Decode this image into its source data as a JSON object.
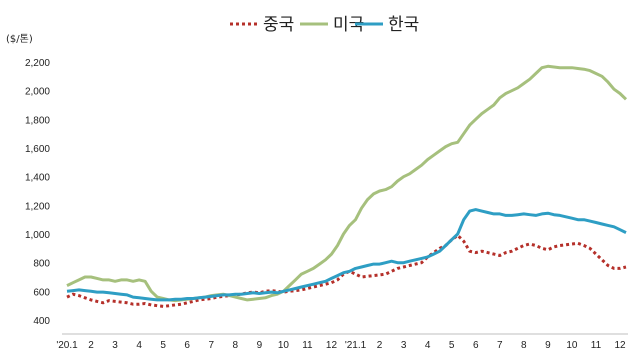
{
  "chart_data": {
    "type": "line",
    "unit_label": "($/톤)",
    "legend_position": "top-center",
    "grid": false,
    "ylim": [
      400,
      2200
    ],
    "yticks": [
      400,
      600,
      800,
      "1,000",
      "1,200",
      "1,400",
      "1,600",
      "1,800",
      "2,000",
      "2,200"
    ],
    "ytick_values": [
      400,
      600,
      800,
      1000,
      1200,
      1400,
      1600,
      1800,
      2000,
      2200
    ],
    "xticks": [
      "'20.1",
      "2",
      "3",
      "4",
      "5",
      "6",
      "7",
      "8",
      "9",
      "10",
      "11",
      "12",
      "'21.1",
      "2",
      "3",
      "4",
      "5",
      "6",
      "7",
      "8",
      "9",
      "10",
      "11",
      "12"
    ],
    "x_per_tick": 4,
    "x_start_tick": "'20.1",
    "series": [
      {
        "name": "중국",
        "color": "#b5302a",
        "style": "dotted",
        "values": [
          560,
          580,
          570,
          555,
          540,
          530,
          520,
          535,
          530,
          525,
          520,
          510,
          510,
          515,
          505,
          500,
          495,
          500,
          505,
          510,
          520,
          530,
          540,
          545,
          550,
          560,
          565,
          570,
          575,
          580,
          590,
          595,
          590,
          600,
          605,
          600,
          595,
          600,
          605,
          610,
          620,
          630,
          640,
          650,
          660,
          680,
          720,
          740,
          720,
          700,
          705,
          710,
          715,
          720,
          740,
          760,
          770,
          780,
          790,
          800,
          840,
          870,
          900,
          920,
          960,
          990,
          950,
          880,
          870,
          880,
          870,
          860,
          850,
          870,
          880,
          900,
          920,
          930,
          920,
          900,
          890,
          910,
          920,
          925,
          930,
          935,
          920,
          900,
          860,
          820,
          780,
          760,
          760,
          770
        ]
      },
      {
        "name": "미국",
        "color": "#a6c07d",
        "style": "solid",
        "values": [
          640,
          660,
          680,
          700,
          700,
          690,
          680,
          680,
          670,
          680,
          680,
          670,
          680,
          670,
          600,
          560,
          550,
          540,
          535,
          540,
          545,
          550,
          555,
          560,
          570,
          575,
          580,
          570,
          560,
          550,
          540,
          545,
          550,
          555,
          570,
          580,
          600,
          640,
          680,
          720,
          740,
          760,
          790,
          820,
          860,
          920,
          1000,
          1060,
          1100,
          1180,
          1240,
          1280,
          1300,
          1310,
          1330,
          1370,
          1400,
          1420,
          1450,
          1480,
          1520,
          1550,
          1580,
          1610,
          1630,
          1640,
          1700,
          1760,
          1800,
          1840,
          1870,
          1900,
          1950,
          1980,
          2000,
          2020,
          2050,
          2080,
          2120,
          2160,
          2170,
          2165,
          2160,
          2160,
          2160,
          2155,
          2150,
          2140,
          2120,
          2100,
          2060,
          2010,
          1980,
          1940
        ]
      },
      {
        "name": "한국",
        "color": "#2e9ec4",
        "style": "solid",
        "values": [
          600,
          605,
          610,
          605,
          600,
          595,
          595,
          590,
          585,
          580,
          575,
          560,
          555,
          550,
          545,
          540,
          540,
          540,
          545,
          545,
          550,
          550,
          555,
          560,
          565,
          570,
          575,
          575,
          580,
          580,
          585,
          590,
          585,
          590,
          595,
          590,
          600,
          610,
          620,
          630,
          640,
          650,
          660,
          670,
          690,
          710,
          730,
          740,
          760,
          770,
          780,
          790,
          790,
          800,
          810,
          800,
          800,
          810,
          820,
          830,
          840,
          860,
          880,
          920,
          960,
          1000,
          1100,
          1160,
          1170,
          1160,
          1150,
          1140,
          1140,
          1130,
          1130,
          1135,
          1140,
          1135,
          1130,
          1140,
          1145,
          1135,
          1130,
          1120,
          1110,
          1100,
          1100,
          1090,
          1080,
          1070,
          1060,
          1050,
          1030,
          1010
        ]
      }
    ]
  }
}
